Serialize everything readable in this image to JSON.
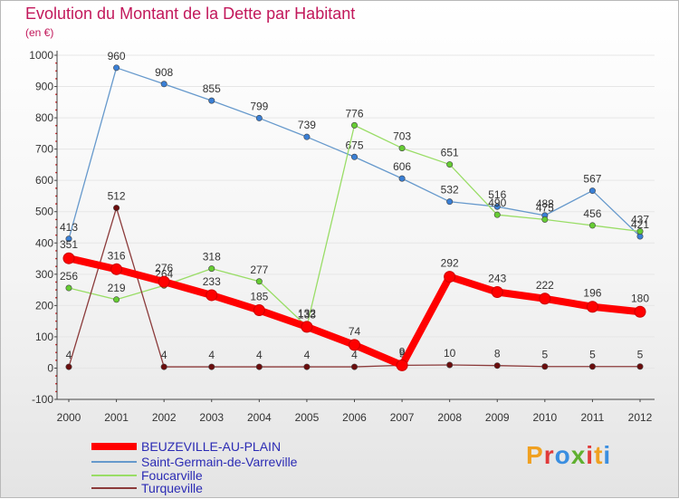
{
  "title": "Evolution du Montant de la Dette par Habitant",
  "unit_label": "(en €)",
  "logo": {
    "text": "Proxiti"
  },
  "colors": {
    "title": "#c2185b",
    "axis": "#333333",
    "grid": "#e6e6e6"
  },
  "chart_data": {
    "type": "line",
    "title": "Evolution du Montant de la Dette par Habitant",
    "ylabel": "(en €)",
    "xlabel": "",
    "x": [
      "2000",
      "2001",
      "2002",
      "2003",
      "2004",
      "2005",
      "2006",
      "2007",
      "2008",
      "2009",
      "2010",
      "2011",
      "2012"
    ],
    "ylim": [
      -100,
      1000
    ],
    "yticks": [
      -100,
      0,
      100,
      200,
      300,
      400,
      500,
      600,
      700,
      800,
      900,
      1000
    ],
    "grid": true,
    "legend_position": "bottom-left",
    "series": [
      {
        "name": "BEUZEVILLE-AU-PLAIN",
        "color": "#ff0000",
        "line_width": 8,
        "marker_fill": "#ff0000",
        "values": [
          351,
          316,
          276,
          233,
          185,
          132,
          74,
          9,
          292,
          243,
          222,
          196,
          180
        ]
      },
      {
        "name": "Saint-Germain-de-Varreville",
        "color": "#6699cc",
        "line_width": 1.3,
        "marker_fill": "#3a7fd5",
        "values": [
          413,
          960,
          908,
          855,
          799,
          739,
          675,
          606,
          532,
          516,
          488,
          567,
          421
        ]
      },
      {
        "name": "Foucarville",
        "color": "#99dd66",
        "line_width": 1.3,
        "marker_fill": "#66cc33",
        "values": [
          256,
          219,
          264,
          318,
          277,
          133,
          776,
          703,
          651,
          490,
          475,
          456,
          437
        ]
      },
      {
        "name": "Turqueville",
        "color": "#8b3a3a",
        "line_width": 1.3,
        "marker_fill": "#6b0d0d",
        "values": [
          4,
          512,
          4,
          4,
          4,
          4,
          4,
          9,
          10,
          8,
          5,
          5,
          5
        ]
      }
    ]
  }
}
